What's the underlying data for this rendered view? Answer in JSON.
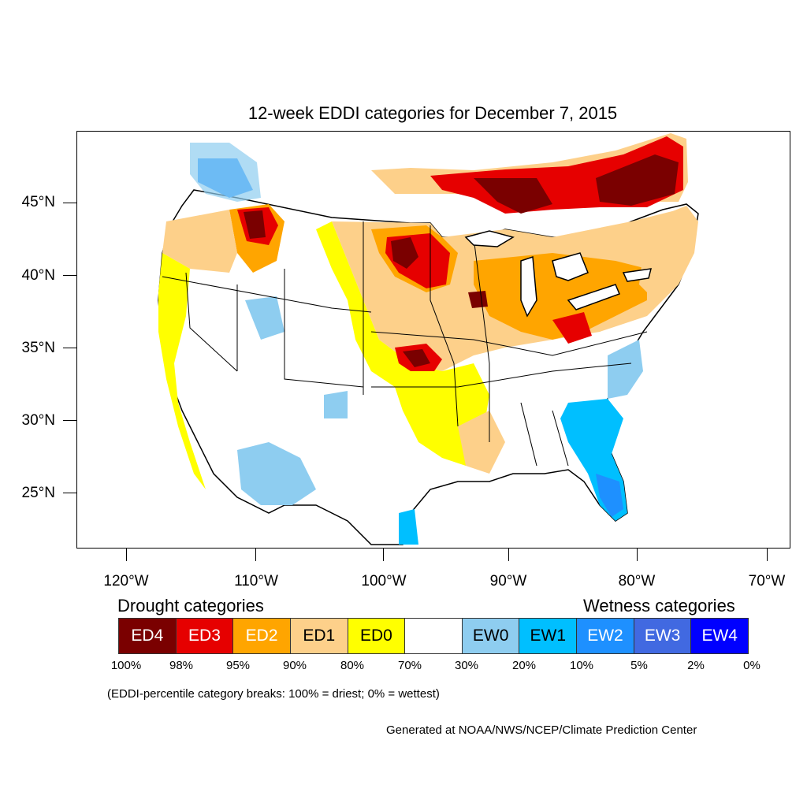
{
  "title": "12-week EDDI categories for December 7, 2015",
  "map": {
    "lat_labels": [
      "45°N",
      "40°N",
      "35°N",
      "30°N",
      "25°N"
    ],
    "lon_labels": [
      "120°W",
      "110°W",
      "100°W",
      "90°W",
      "80°W",
      "70°W"
    ]
  },
  "legend": {
    "drought_title": "Drought categories",
    "wetness_title": "Wetness categories",
    "categories": [
      {
        "label": "ED4",
        "color": "#7a0000",
        "text_color": "#ffffff"
      },
      {
        "label": "ED3",
        "color": "#e60000",
        "text_color": "#ffffff"
      },
      {
        "label": "ED2",
        "color": "#ffa500",
        "text_color": "#ffffff"
      },
      {
        "label": "ED1",
        "color": "#fdd08a",
        "text_color": "#000000"
      },
      {
        "label": "ED0",
        "color": "#ffff00",
        "text_color": "#000000"
      },
      {
        "label": "",
        "color": "#ffffff",
        "text_color": "#000000"
      },
      {
        "label": "EW0",
        "color": "#8ecdf0",
        "text_color": "#000000"
      },
      {
        "label": "EW1",
        "color": "#00bfff",
        "text_color": "#000000"
      },
      {
        "label": "EW2",
        "color": "#1e90ff",
        "text_color": "#ffffff"
      },
      {
        "label": "EW3",
        "color": "#4169e1",
        "text_color": "#ffffff"
      },
      {
        "label": "EW4",
        "color": "#0000ff",
        "text_color": "#ffffff"
      }
    ],
    "breaks": [
      "100%",
      "98%",
      "95%",
      "90%",
      "80%",
      "70%",
      "30%",
      "20%",
      "10%",
      "5%",
      "2%",
      "0%"
    ]
  },
  "note": "(EDDI-percentile category breaks: 100% = driest; 0% = wettest)",
  "credit": "Generated at NOAA/NWS/NCEP/Climate Prediction Center"
}
